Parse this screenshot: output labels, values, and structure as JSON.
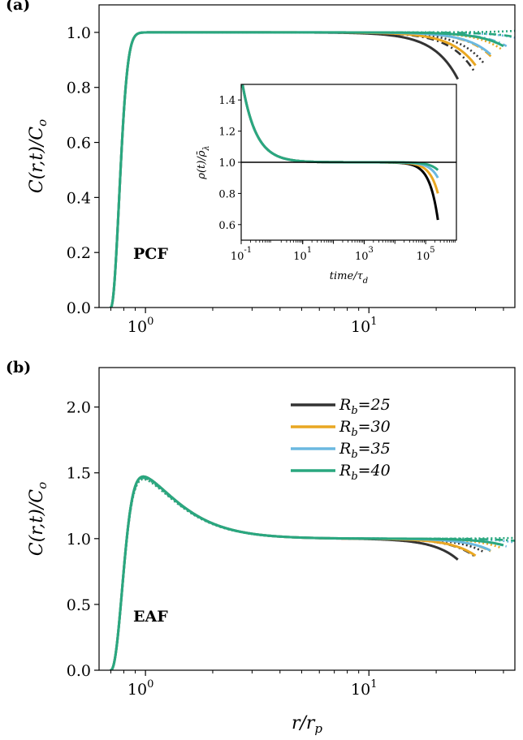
{
  "chart_data": [
    {
      "panel_label": "(a)",
      "type": "line",
      "annotation": "PCF",
      "ylabel": "C(r,t)/C_o",
      "xscale": "log",
      "xlim": [
        0.62,
        45
      ],
      "ylim": [
        0.0,
        1.1
      ],
      "xticks": [
        {
          "value": 1,
          "label": "10^0"
        },
        {
          "value": 10,
          "label": "10^1"
        }
      ],
      "yticks": [
        {
          "value": 0.0,
          "label": "0.0"
        },
        {
          "value": 0.2,
          "label": "0.2"
        },
        {
          "value": 0.4,
          "label": "0.4"
        },
        {
          "value": 0.6,
          "label": "0.6"
        },
        {
          "value": 0.8,
          "label": "0.8"
        },
        {
          "value": 1.0,
          "label": "1.0"
        }
      ],
      "shape": {
        "x_start": 0.7,
        "rise": 0.12,
        "overshoot": 0.0
      },
      "series": [
        {
          "name": "R_b=25",
          "color": "#333333",
          "r_end": 25,
          "y_end": 0.83
        },
        {
          "name": "R_b=30",
          "color": "#E9A722",
          "r_end": 30,
          "y_end": 0.88
        },
        {
          "name": "R_b=35",
          "color": "#6BB8E0",
          "r_end": 35,
          "y_end": 0.92
        },
        {
          "name": "R_b=40",
          "color": "#2AA77F",
          "r_end": 40,
          "y_end": 0.95
        }
      ],
      "inset": {
        "type": "line",
        "ylabel": "ρ(t)/ρ̄_λ",
        "xlabel": "time/τ_d",
        "xscale": "log",
        "xlim": [
          0.1,
          1000000
        ],
        "ylim": [
          0.5,
          1.5
        ],
        "xticks": [
          {
            "value": 0.1,
            "label": "10^-1"
          },
          {
            "value": 10,
            "label": "10^1"
          },
          {
            "value": 1000,
            "label": "10^3"
          },
          {
            "value": 100000,
            "label": "10^5"
          }
        ],
        "yticks": [
          {
            "value": 0.6,
            "label": "0.6"
          },
          {
            "value": 0.8,
            "label": "0.8"
          },
          {
            "value": 1.0,
            "label": "1.0"
          },
          {
            "value": 1.2,
            "label": "1.2"
          },
          {
            "value": 1.4,
            "label": "1.4"
          }
        ],
        "reference_line": 1.0,
        "series": [
          {
            "name": "R_b=25",
            "color": "#000000",
            "t_end": 250000,
            "y_end": 0.63
          },
          {
            "name": "R_b=30",
            "color": "#E9A722",
            "t_end": 250000,
            "y_end": 0.8
          },
          {
            "name": "R_b=35",
            "color": "#6BB8E0",
            "t_end": 250000,
            "y_end": 0.9
          },
          {
            "name": "R_b=40",
            "color": "#2AA77F",
            "t_end": 250000,
            "y_end": 0.95
          }
        ]
      }
    },
    {
      "panel_label": "(b)",
      "type": "line",
      "annotation": "EAF",
      "ylabel": "C(r,t)/C_o",
      "xlabel": "r/r_p",
      "xscale": "log",
      "xlim": [
        0.62,
        45
      ],
      "ylim": [
        0.0,
        2.3
      ],
      "xticks": [
        {
          "value": 1,
          "label": "10^0"
        },
        {
          "value": 10,
          "label": "10^1"
        }
      ],
      "yticks": [
        {
          "value": 0.0,
          "label": "0.0"
        },
        {
          "value": 0.5,
          "label": "0.5"
        },
        {
          "value": 1.0,
          "label": "1.0"
        },
        {
          "value": 1.5,
          "label": "1.5"
        },
        {
          "value": 2.0,
          "label": "2.0"
        }
      ],
      "shape": {
        "x_start": 0.7,
        "rise": 0.15,
        "overshoot": 1.2
      },
      "legend": {
        "placement": "upper-right"
      },
      "series": [
        {
          "name": "R_b=25",
          "color": "#333333",
          "r_end": 25,
          "y_end": 0.84
        },
        {
          "name": "R_b=30",
          "color": "#E9A722",
          "r_end": 30,
          "y_end": 0.87
        },
        {
          "name": "R_b=35",
          "color": "#6BB8E0",
          "r_end": 35,
          "y_end": 0.91
        },
        {
          "name": "R_b=40",
          "color": "#2AA77F",
          "r_end": 40,
          "y_end": 0.95
        }
      ]
    }
  ]
}
